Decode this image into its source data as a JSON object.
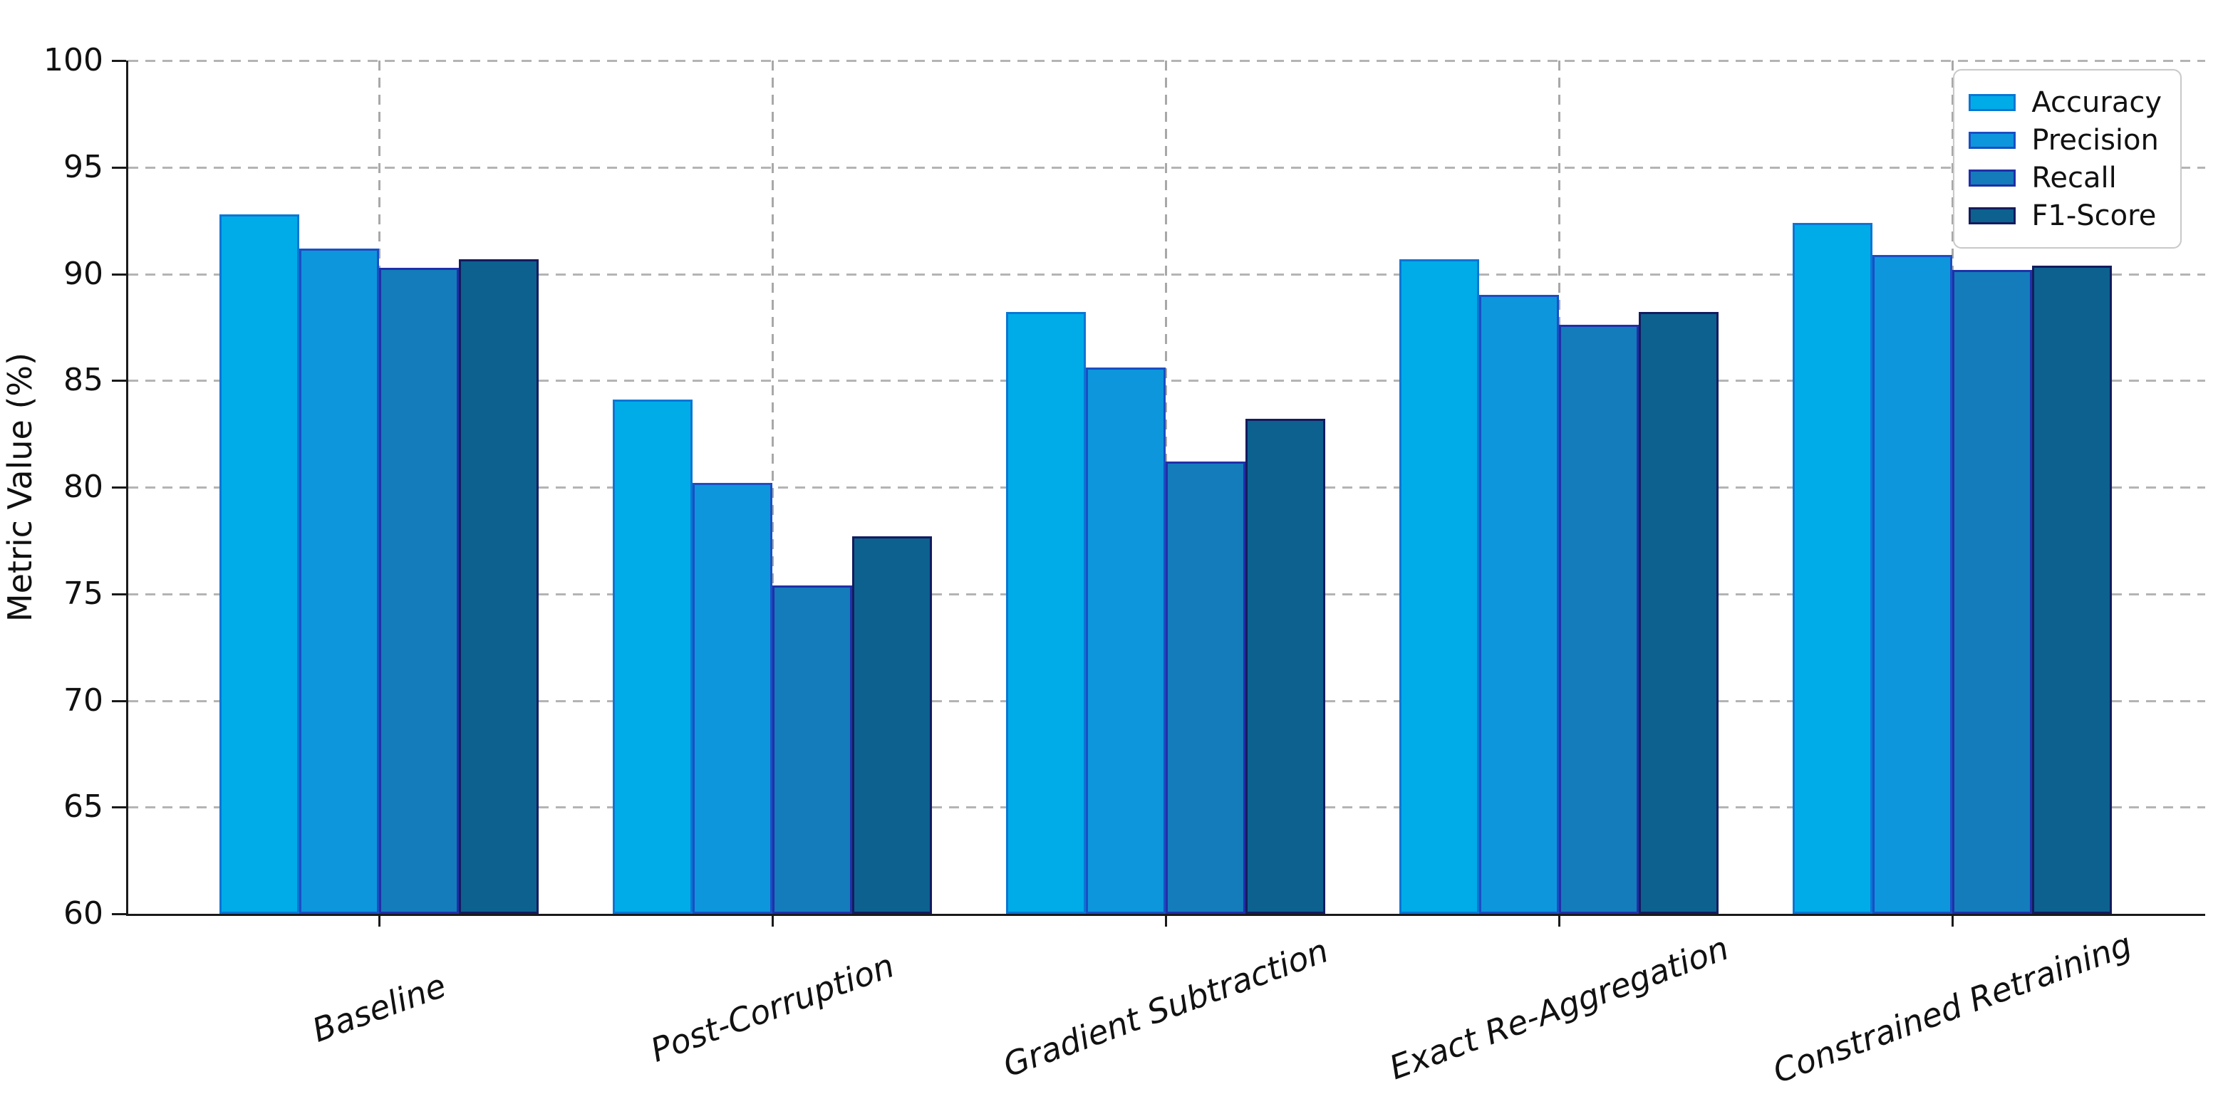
{
  "chart_data": {
    "type": "bar",
    "title": "",
    "xlabel": "",
    "ylabel": "Metric Value (%)",
    "ylim": [
      60,
      100
    ],
    "yticks": [
      60,
      65,
      70,
      75,
      80,
      85,
      90,
      95,
      100
    ],
    "grid": "dashed, horizontal at yticks and vertical at category centers",
    "legend_position": "upper-right",
    "background_color": "#ffffff",
    "gridline_color": "#b0b0b0",
    "categories": [
      "Baseline",
      "Post-Corruption",
      "Gradient Subtraction",
      "Exact Re-Aggregation",
      "Constrained Retraining"
    ],
    "series": [
      {
        "name": "Accuracy",
        "fill": "#00ACE8",
        "edge": "#0B76D4",
        "values": [
          92.8,
          84.1,
          88.2,
          90.7,
          92.4
        ]
      },
      {
        "name": "Precision",
        "fill": "#0E96DC",
        "edge": "#1A4FC4",
        "values": [
          91.2,
          80.2,
          85.6,
          89.0,
          90.9
        ]
      },
      {
        "name": "Recall",
        "fill": "#147CBB",
        "edge": "#2030A8",
        "values": [
          90.3,
          75.4,
          81.2,
          87.6,
          90.2
        ]
      },
      {
        "name": "F1-Score",
        "fill": "#0C618F",
        "edge": "#141C5E",
        "values": [
          90.7,
          77.7,
          83.2,
          88.2,
          90.4
        ]
      }
    ]
  }
}
